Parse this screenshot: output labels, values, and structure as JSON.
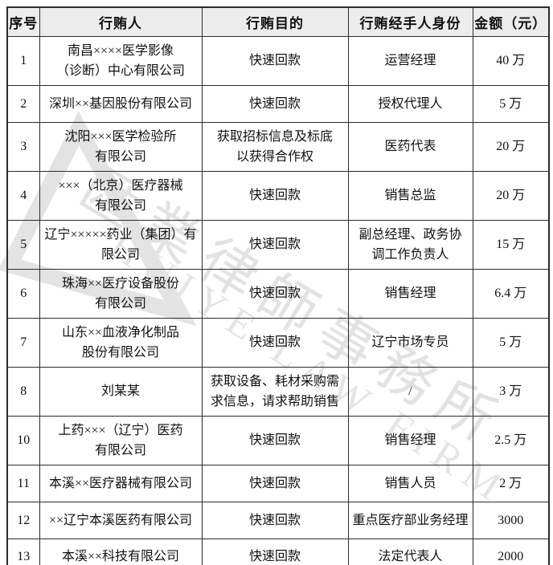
{
  "table": {
    "headers": [
      "序号",
      "行贿人",
      "行贿目的",
      "行贿经手人身份",
      "金额（元）"
    ],
    "rows": [
      {
        "no": "1",
        "briber": "南昌××××医学影像\n（诊断）中心有限公司",
        "purpose": "快速回款",
        "handler": "运营经理",
        "amount": "40 万"
      },
      {
        "no": "2",
        "briber": "深圳××基因股份有限公司",
        "purpose": "快速回款",
        "handler": "授权代理人",
        "amount": "5 万"
      },
      {
        "no": "3",
        "briber": "沈阳×××医学检验所\n有限公司",
        "purpose": "获取招标信息及标底\n以获得合作权",
        "handler": "医药代表",
        "amount": "20 万"
      },
      {
        "no": "4",
        "briber": "×××（北京）医疗器械\n有限公司",
        "purpose": "快速回款",
        "handler": "销售总监",
        "amount": "20 万"
      },
      {
        "no": "5",
        "briber": "辽宁×××××药业（集团）有\n限公司",
        "purpose": "快速回款",
        "handler": "副总经理、政务协\n调工作负责人",
        "amount": "15 万"
      },
      {
        "no": "6",
        "briber": "珠海××医疗设备股份\n有限公司",
        "purpose": "快速回款",
        "handler": "销售经理",
        "amount": "6.4 万"
      },
      {
        "no": "7",
        "briber": "山东××血液净化制品\n股份有限公司",
        "purpose": "快速回款",
        "handler": "辽宁市场专员",
        "amount": "5 万"
      },
      {
        "no": "8",
        "briber": "刘某某",
        "purpose": "获取设备、耗材采购需\n求信息，请求帮助销售",
        "handler": "/",
        "amount": "3 万"
      },
      {
        "no": "10",
        "briber": "上药×××（辽宁）医药\n有限公司",
        "purpose": "快速回款",
        "handler": "销售经理",
        "amount": "2.5 万"
      },
      {
        "no": "11",
        "briber": "本溪××医疗器械有限公司",
        "purpose": "快速回款",
        "handler": "销售人员",
        "amount": "2 万"
      },
      {
        "no": "12",
        "briber": "××辽宁本溪医药有限公司",
        "purpose": "快速回款",
        "handler": "重点医疗部业务经理",
        "amount": "3000"
      },
      {
        "no": "13",
        "briber": "本溪××科技有限公司",
        "purpose": "快速回款",
        "handler": "法定代表人",
        "amount": "2000"
      }
    ]
  },
  "watermark": {
    "cn_text": "匯業律師事務所",
    "en_text": "HUIYE LAW FIRM",
    "logo": "triangle-logo",
    "color": "#e3e3e3"
  },
  "colors": {
    "header_bg": "#ececec",
    "border": "#2b2b2b",
    "text": "#111111",
    "page_bg": "#ffffff"
  }
}
